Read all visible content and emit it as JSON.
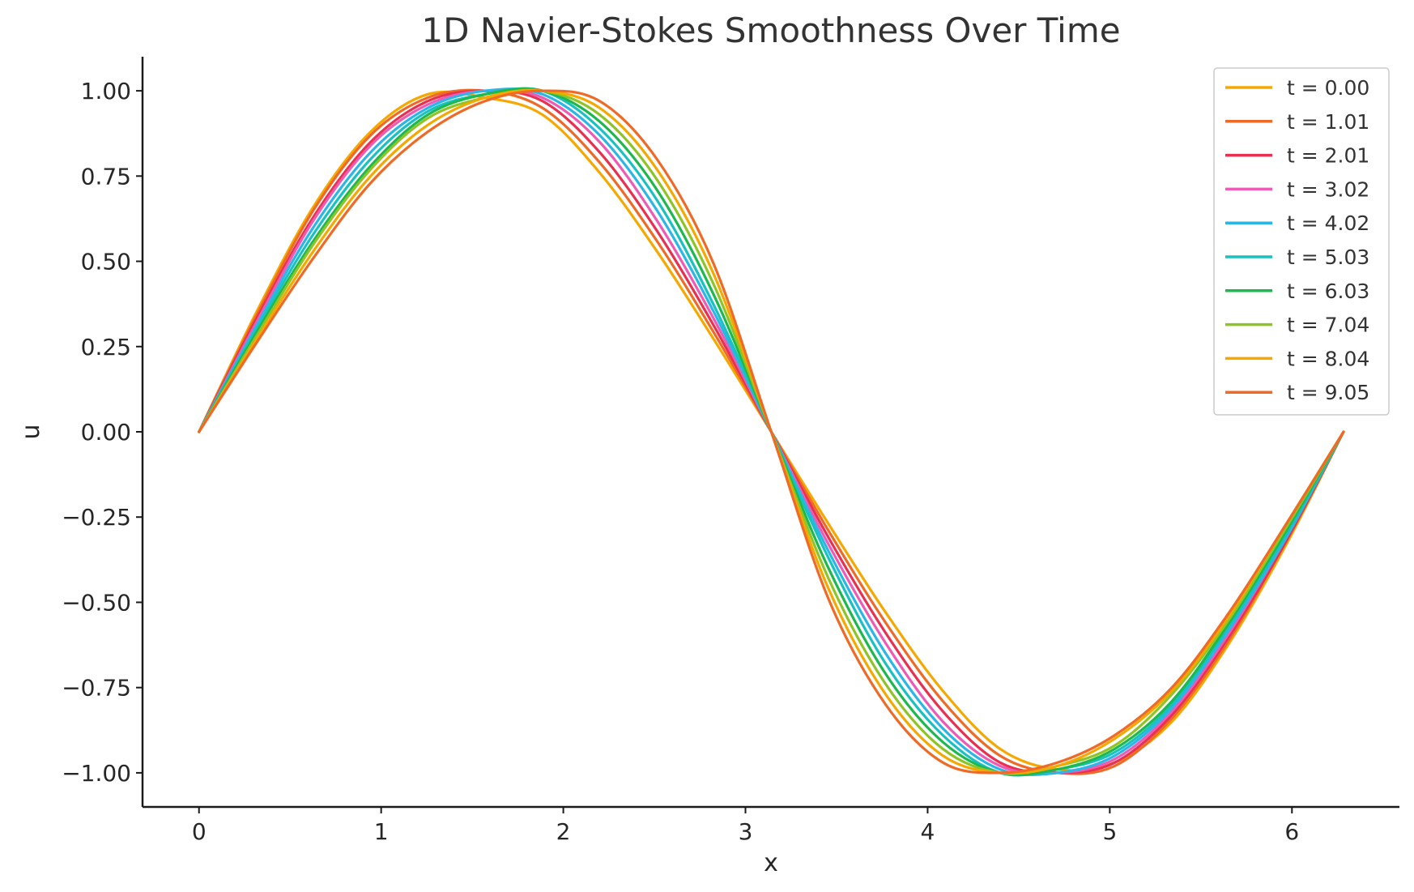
{
  "chart_data": {
    "type": "line",
    "title": "1D Navier-Stokes Smoothness Over Time",
    "xlabel": "x",
    "ylabel": "u",
    "xlim": [
      -0.31,
      6.59
    ],
    "ylim": [
      -1.1,
      1.1
    ],
    "xticks": [
      0,
      1,
      2,
      3,
      4,
      5,
      6
    ],
    "xtick_labels": [
      "0",
      "1",
      "2",
      "3",
      "4",
      "5",
      "6"
    ],
    "yticks": [
      1.0,
      0.75,
      0.5,
      0.25,
      0.0,
      -0.25,
      -0.5,
      -0.75,
      -1.0
    ],
    "ytick_labels": [
      "1.00",
      "0.75",
      "0.50",
      "0.25",
      "0.00",
      "−0.25",
      "−0.50",
      "−0.75",
      "−1.00"
    ],
    "grid": false,
    "legend_position": "top-right",
    "x": [
      0.0,
      0.3142,
      0.6283,
      0.9425,
      1.2566,
      1.5708,
      1.885,
      2.1991,
      2.5133,
      2.8274,
      3.1416,
      3.4558,
      3.7699,
      4.0841,
      4.3982,
      4.7124,
      5.0265,
      5.3407,
      5.6549,
      5.969,
      6.2832
    ],
    "series": [
      {
        "name": "t = 0.00",
        "color": "#F5A800",
        "values": [
          0.0,
          0.35,
          0.66,
          0.88,
          0.99,
          0.98,
          0.93,
          0.76,
          0.53,
          0.27,
          0.0,
          -0.27,
          -0.53,
          -0.76,
          -0.93,
          -0.99,
          -0.97,
          -0.85,
          -0.62,
          -0.33,
          0.0
        ]
      },
      {
        "name": "t = 1.01",
        "color": "#EE6A26",
        "values": [
          0.0,
          0.34,
          0.65,
          0.87,
          0.98,
          1.0,
          0.95,
          0.79,
          0.56,
          0.29,
          0.0,
          -0.29,
          -0.56,
          -0.79,
          -0.95,
          -1.0,
          -0.98,
          -0.84,
          -0.61,
          -0.32,
          0.0
        ]
      },
      {
        "name": "t = 2.01",
        "color": "#E83050",
        "values": [
          0.0,
          0.33,
          0.63,
          0.85,
          0.97,
          1.0,
          0.97,
          0.82,
          0.59,
          0.31,
          0.0,
          -0.31,
          -0.59,
          -0.82,
          -0.97,
          -1.0,
          -0.97,
          -0.83,
          -0.6,
          -0.32,
          0.0
        ]
      },
      {
        "name": "t = 3.02",
        "color": "#EE5BB5",
        "values": [
          0.0,
          0.32,
          0.62,
          0.84,
          0.96,
          1.0,
          0.98,
          0.85,
          0.62,
          0.33,
          0.0,
          -0.33,
          -0.62,
          -0.85,
          -0.98,
          -1.0,
          -0.96,
          -0.82,
          -0.59,
          -0.31,
          0.0
        ]
      },
      {
        "name": "t = 4.02",
        "color": "#2BB6E8",
        "values": [
          0.0,
          0.31,
          0.6,
          0.82,
          0.95,
          1.0,
          0.99,
          0.87,
          0.65,
          0.35,
          0.0,
          -0.35,
          -0.65,
          -0.87,
          -0.99,
          -1.0,
          -0.95,
          -0.81,
          -0.58,
          -0.31,
          0.0
        ]
      },
      {
        "name": "t = 5.03",
        "color": "#19C1C1",
        "values": [
          0.0,
          0.3,
          0.58,
          0.8,
          0.94,
          0.99,
          1.0,
          0.89,
          0.68,
          0.37,
          0.0,
          -0.37,
          -0.68,
          -0.89,
          -1.0,
          -0.99,
          -0.94,
          -0.8,
          -0.57,
          -0.3,
          0.0
        ]
      },
      {
        "name": "t = 6.03",
        "color": "#1DB84E",
        "values": [
          0.0,
          0.29,
          0.56,
          0.78,
          0.93,
          0.99,
          1.0,
          0.91,
          0.71,
          0.4,
          0.0,
          -0.4,
          -0.71,
          -0.91,
          -1.0,
          -0.99,
          -0.93,
          -0.79,
          -0.56,
          -0.29,
          0.0
        ]
      },
      {
        "name": "t = 7.04",
        "color": "#8EC425",
        "values": [
          0.0,
          0.28,
          0.55,
          0.77,
          0.92,
          0.98,
          1.0,
          0.93,
          0.74,
          0.43,
          0.0,
          -0.43,
          -0.74,
          -0.93,
          -1.0,
          -0.98,
          -0.92,
          -0.77,
          -0.55,
          -0.28,
          0.0
        ]
      },
      {
        "name": "t = 8.04",
        "color": "#F5A800",
        "values": [
          0.0,
          0.27,
          0.53,
          0.75,
          0.9,
          0.98,
          1.0,
          0.95,
          0.77,
          0.46,
          0.0,
          -0.46,
          -0.77,
          -0.95,
          -1.0,
          -0.98,
          -0.9,
          -0.76,
          -0.54,
          -0.27,
          0.0
        ]
      },
      {
        "name": "t = 9.05",
        "color": "#EE6A26",
        "values": [
          0.0,
          0.26,
          0.51,
          0.73,
          0.88,
          0.97,
          1.0,
          0.97,
          0.8,
          0.49,
          0.0,
          -0.49,
          -0.8,
          -0.97,
          -1.0,
          -0.97,
          -0.89,
          -0.75,
          -0.53,
          -0.27,
          0.0
        ]
      }
    ]
  }
}
